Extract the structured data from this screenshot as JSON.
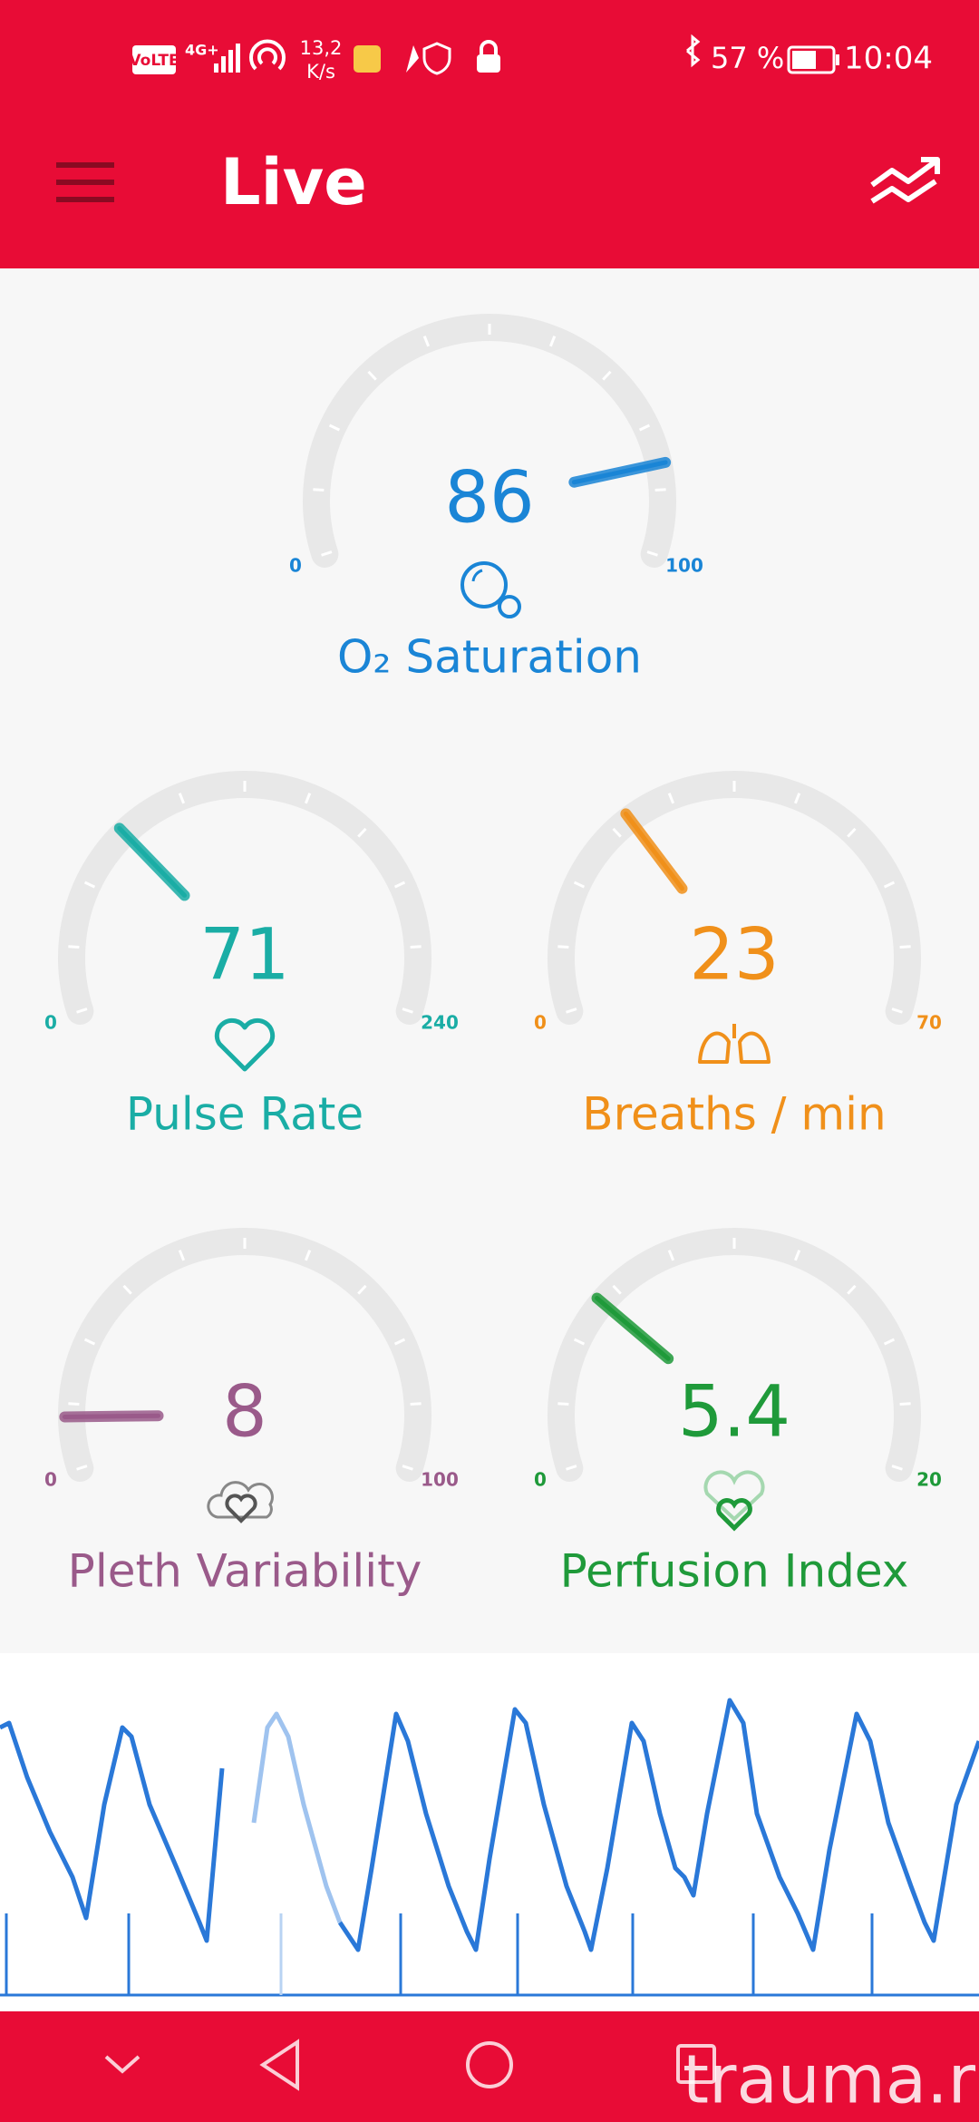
{
  "status_bar": {
    "volte": "VoLTE",
    "network": "4G+",
    "speed": [
      "13,2",
      "K/s"
    ],
    "battery": "57 %",
    "time": "10:04"
  },
  "header": {
    "title": "Live"
  },
  "gauges": [
    {
      "label": "O₂ Saturation",
      "value": 86,
      "min": 0,
      "max": 100,
      "color": "#1a85d6",
      "icon": "o2"
    },
    {
      "label": "Pulse Rate",
      "value": 71,
      "min": 0,
      "max": 240,
      "color": "#1aada5",
      "icon": "heart"
    },
    {
      "label": "Breaths / min",
      "value": 23,
      "min": 0,
      "max": 70,
      "color": "#f0901a",
      "icon": "lungs"
    },
    {
      "label": "Pleth Variability",
      "value": 8,
      "min": 0,
      "max": 100,
      "color": "#9a5a8a",
      "icon": "pleth"
    },
    {
      "label": "Perfusion Index",
      "value": 5.4,
      "min": 0,
      "max": 20,
      "color": "#1f9a3a",
      "icon": "perfusion"
    }
  ],
  "watermark": "trauma.ru"
}
